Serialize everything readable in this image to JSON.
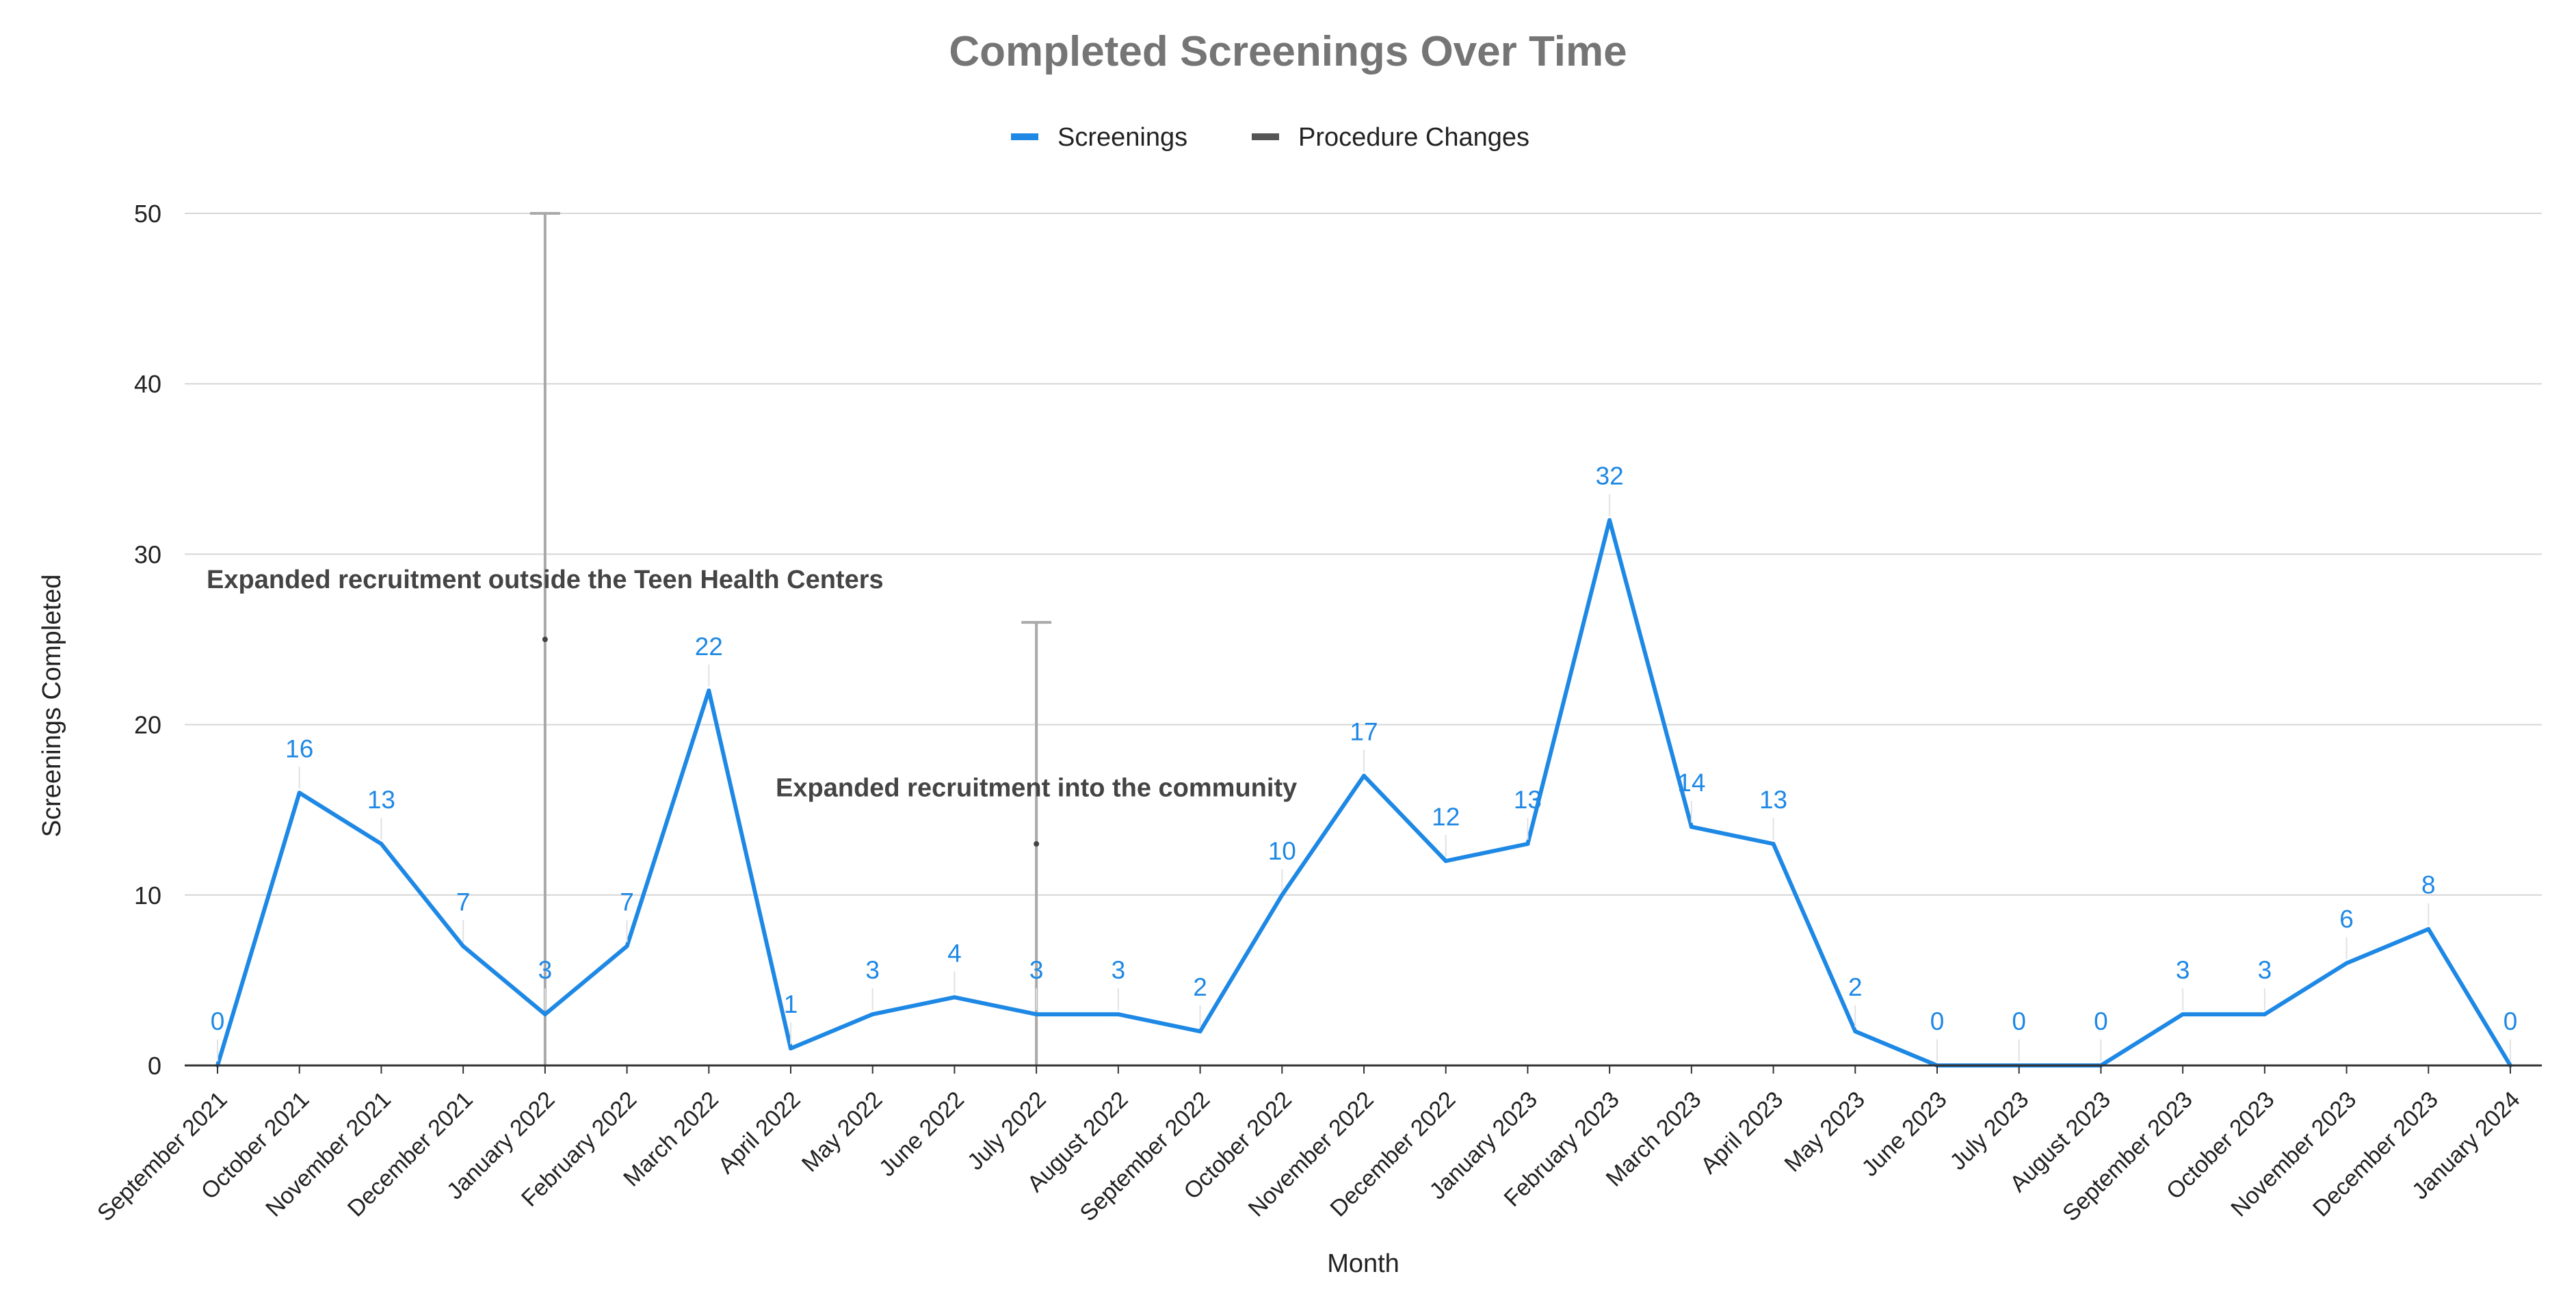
{
  "chart_data": {
    "type": "line",
    "title": "Completed Screenings Over Time",
    "xlabel": "Month",
    "ylabel": "Screenings Completed",
    "ylim": [
      0,
      50
    ],
    "yticks": [
      0,
      10,
      20,
      30,
      40,
      50
    ],
    "grid": true,
    "legend_position": "top",
    "categories": [
      "September 2021",
      "October 2021",
      "November 2021",
      "December 2021",
      "January 2022",
      "February 2022",
      "March 2022",
      "April 2022",
      "May 2022",
      "June 2022",
      "July 2022",
      "August 2022",
      "September 2022",
      "October 2022",
      "November 2022",
      "December 2022",
      "January 2023",
      "February 2023",
      "March 2023",
      "April 2023",
      "May 2023",
      "June 2023",
      "July 2023",
      "August 2023",
      "September 2023",
      "October 2023",
      "November 2023",
      "December 2023",
      "January 2024"
    ],
    "series": [
      {
        "name": "Screenings",
        "color": "#1e88e5",
        "values": [
          0,
          16,
          13,
          7,
          3,
          7,
          22,
          1,
          3,
          4,
          3,
          3,
          2,
          10,
          17,
          12,
          13,
          32,
          14,
          13,
          2,
          0,
          0,
          0,
          3,
          3,
          6,
          8,
          0
        ]
      }
    ],
    "procedure_changes": {
      "name": "Procedure Changes",
      "color": "#555555",
      "bars": [
        {
          "category": "January 2022",
          "low": 0,
          "high": 50,
          "marker": 25
        },
        {
          "category": "July 2022",
          "low": 0,
          "high": 26,
          "marker": 13
        }
      ]
    },
    "annotations": [
      {
        "text": "Expanded recruitment outside the Teen Health Centers",
        "category": "January 2022",
        "y": 28
      },
      {
        "text": "Expanded recruitment into the community",
        "category": "July 2022",
        "y": 15.8
      }
    ]
  }
}
